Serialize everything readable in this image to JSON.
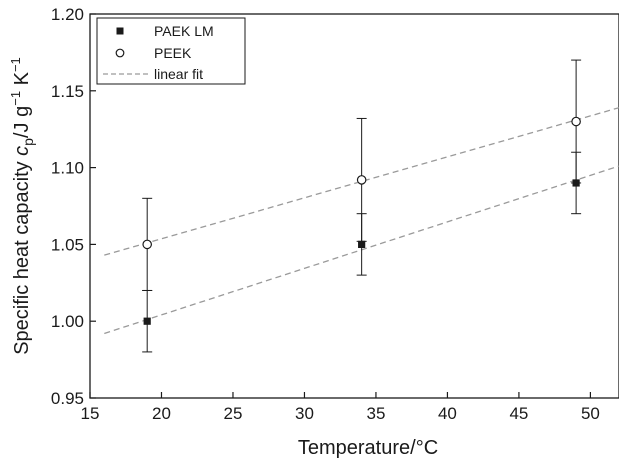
{
  "chart_data": {
    "type": "scatter",
    "xlabel": "Temperature/°C",
    "ylabel": {
      "prefix": "Specific heat capacity ",
      "symbol": "c",
      "subscript": "p",
      "unit_pre": "/J g",
      "exp1": "−1",
      "unit_mid": " K",
      "exp2": "−1"
    },
    "xlim": [
      15,
      52
    ],
    "ylim": [
      0.95,
      1.2
    ],
    "xticks": [
      15,
      20,
      25,
      30,
      35,
      40,
      45,
      50
    ],
    "xtick_labels": [
      "15",
      "20",
      "25",
      "30",
      "35",
      "40",
      "45",
      "50"
    ],
    "yticks": [
      0.95,
      1.0,
      1.05,
      1.1,
      1.15,
      1.2
    ],
    "ytick_labels": [
      "0.95",
      "1.00",
      "1.05",
      "1.10",
      "1.15",
      "1.20"
    ],
    "grid": false,
    "legend_position": "top-left",
    "series": [
      {
        "name": "PAEK LM",
        "marker": "filled-square",
        "color": "#1a1a1a",
        "x": [
          19,
          34,
          49
        ],
        "y": [
          1.0,
          1.05,
          1.09
        ],
        "error": [
          0.02,
          0.02,
          0.02
        ]
      },
      {
        "name": "PEEK",
        "marker": "open-circle",
        "color": "#1a1a1a",
        "x": [
          19,
          34,
          49
        ],
        "y": [
          1.05,
          1.092,
          1.13
        ],
        "error": [
          0.03,
          0.04,
          0.04
        ]
      }
    ],
    "fits": [
      {
        "name": "linear fit",
        "for": "PAEK LM",
        "x": [
          16,
          52
        ],
        "y": [
          0.992,
          1.101
        ],
        "color": "#9a9a9a",
        "style": "dashed"
      },
      {
        "for": "PEEK",
        "x": [
          16,
          52
        ],
        "y": [
          1.043,
          1.139
        ],
        "color": "#9a9a9a",
        "style": "dashed"
      }
    ]
  }
}
